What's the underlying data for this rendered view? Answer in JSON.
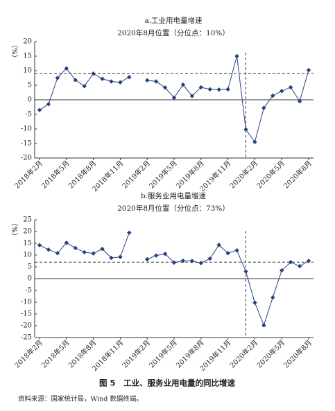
{
  "chart_data": [
    {
      "type": "line",
      "title": "a.工业用电量增速",
      "subtitle": "2020年8月位置（分位点：10%）",
      "y_label": "（%）",
      "categories": [
        "2018年2月",
        null,
        null,
        "2018年5月",
        null,
        null,
        "2018年8月",
        null,
        null,
        "2018年11月",
        null,
        null,
        "2019年2月",
        null,
        null,
        "2019年5月",
        null,
        null,
        "2019年8月",
        null,
        null,
        "2019年11月",
        null,
        null,
        "2020年2月",
        null,
        null,
        "2020年5月",
        null,
        null,
        "2020年8月"
      ],
      "values": [
        -3.5,
        -1.5,
        7.5,
        10.8,
        6.8,
        4.7,
        9,
        7.2,
        6.3,
        6,
        7.8,
        null,
        6.7,
        6.3,
        4.2,
        0.7,
        5.2,
        1.3,
        4.3,
        3.6,
        3.5,
        3.6,
        15,
        -10.2,
        -14.5,
        -2.8,
        1.4,
        3,
        4.3,
        -0.5,
        10.2
      ],
      "color": "#24407e",
      "ylim": [
        -20,
        20
      ],
      "yticks": [
        -20,
        -15,
        -10,
        -5,
        0,
        5,
        10,
        15,
        20
      ],
      "reference_line": 9,
      "divider_index": 23
    },
    {
      "type": "line",
      "title": "b.服务业用电量增速",
      "subtitle": "2020年8月位置（分位点：73%）",
      "y_label": "（%）",
      "categories": [
        "2018年2月",
        null,
        null,
        "2018年5月",
        null,
        null,
        "2018年8月",
        null,
        null,
        "2018年11月",
        null,
        null,
        "2019年2月",
        null,
        null,
        "2019年5月",
        null,
        null,
        "2019年8月",
        null,
        null,
        "2019年11月",
        null,
        null,
        "2020年2月",
        null,
        null,
        "2020年5月",
        null,
        null,
        "2020年8月"
      ],
      "values": [
        14.2,
        12.3,
        10.8,
        15.2,
        13,
        11.2,
        10.7,
        12.6,
        8.8,
        9.2,
        19.5,
        null,
        8.2,
        9.8,
        10.5,
        6.8,
        7.6,
        7.5,
        6.6,
        8.5,
        14.3,
        10.8,
        12,
        3,
        -10.2,
        -19.8,
        -8,
        3.5,
        7,
        5.3,
        7.5
      ],
      "color": "#24407e",
      "ylim": [
        -25,
        25
      ],
      "yticks": [
        -25,
        -20,
        -15,
        -10,
        -5,
        0,
        5,
        10,
        15,
        20,
        25
      ],
      "reference_line": 7,
      "divider_index": 23
    }
  ],
  "caption": "图 5　工业、服务业用电量的同比增速",
  "source": "资料来源：国家统计局，Wind 数据终端。"
}
